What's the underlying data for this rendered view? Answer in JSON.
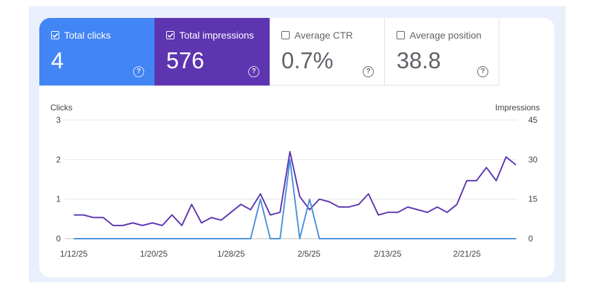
{
  "metrics": [
    {
      "label": "Total clicks",
      "value": "4",
      "checked": true,
      "bg": "#4285f4",
      "help": "?"
    },
    {
      "label": "Total impressions",
      "value": "576",
      "checked": true,
      "bg": "#5e35b1",
      "help": "?"
    },
    {
      "label": "Average CTR",
      "value": "0.7%",
      "checked": false,
      "bg": "#ffffff",
      "help": "?"
    },
    {
      "label": "Average position",
      "value": "38.8",
      "checked": false,
      "bg": "#ffffff",
      "help": "?"
    }
  ],
  "chart_data": {
    "type": "line",
    "left_axis": {
      "title": "Clicks",
      "ticks": [
        "0",
        "1",
        "2",
        "3"
      ],
      "range": [
        0,
        3
      ]
    },
    "right_axis": {
      "title": "Impressions",
      "ticks": [
        "0",
        "15",
        "30",
        "45"
      ],
      "range": [
        0,
        45
      ]
    },
    "x_ticks": [
      "1/12/25",
      "1/20/25",
      "1/28/25",
      "2/5/25",
      "2/13/25",
      "2/21/25"
    ],
    "grid": true,
    "series": [
      {
        "axis": "right",
        "color": "#5e35b1",
        "values": [
          9,
          9,
          8,
          8,
          5,
          5,
          6,
          5,
          6,
          5,
          9,
          5,
          13,
          6,
          8,
          7,
          10,
          13,
          11,
          17,
          9,
          10,
          33,
          16,
          11,
          15,
          14,
          12,
          12,
          13,
          17,
          9,
          10,
          10,
          12,
          11,
          10,
          12,
          10,
          13,
          22,
          22,
          27,
          22,
          31,
          28
        ]
      },
      {
        "axis": "left",
        "color": "#4a90d9",
        "values": [
          0,
          0,
          0,
          0,
          0,
          0,
          0,
          0,
          0,
          0,
          0,
          0,
          0,
          0,
          0,
          0,
          0,
          0,
          0,
          1,
          0,
          0,
          2,
          0,
          1,
          0,
          0,
          0,
          0,
          0,
          0,
          0,
          0,
          0,
          0,
          0,
          0,
          0,
          0,
          0,
          0,
          0,
          0,
          0,
          0,
          0
        ]
      }
    ]
  }
}
